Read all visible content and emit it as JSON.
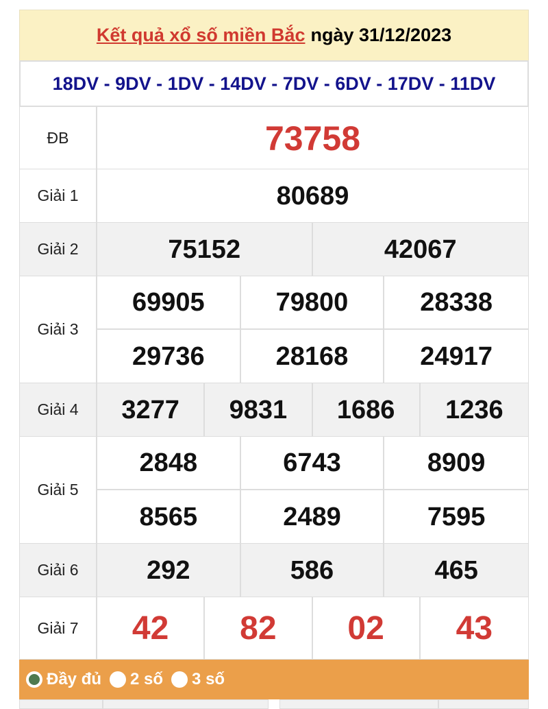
{
  "header": {
    "link_text": "Kết quả xổ số miền Bắc",
    "date_text": "ngày 31/12/2023"
  },
  "codes": "18DV - 9DV - 1DV - 14DV - 7DV - 6DV - 17DV - 11DV",
  "prizes": [
    {
      "label": "ĐB",
      "numbers": [
        "73758"
      ]
    },
    {
      "label": "Giải 1",
      "numbers": [
        "80689"
      ]
    },
    {
      "label": "Giải 2",
      "numbers": [
        "75152",
        "42067"
      ]
    },
    {
      "label": "Giải 3",
      "numbers": [
        "69905",
        "79800",
        "28338",
        "29736",
        "28168",
        "24917"
      ]
    },
    {
      "label": "Giải 4",
      "numbers": [
        "3277",
        "9831",
        "1686",
        "1236"
      ]
    },
    {
      "label": "Giải 5",
      "numbers": [
        "2848",
        "6743",
        "8909",
        "8565",
        "2489",
        "7595"
      ]
    },
    {
      "label": "Giải 6",
      "numbers": [
        "292",
        "586",
        "465"
      ]
    },
    {
      "label": "Giải 7",
      "numbers": [
        "42",
        "82",
        "02",
        "43"
      ]
    }
  ],
  "options": [
    {
      "label": "Đầy đủ",
      "selected": true
    },
    {
      "label": "2 số",
      "selected": false
    },
    {
      "label": "3 số",
      "selected": false
    }
  ],
  "colors": {
    "accent_red": "#d13a35",
    "codes_blue": "#13138c",
    "header_bg": "#fbf1c4",
    "option_bar": "#eb9f4a"
  }
}
